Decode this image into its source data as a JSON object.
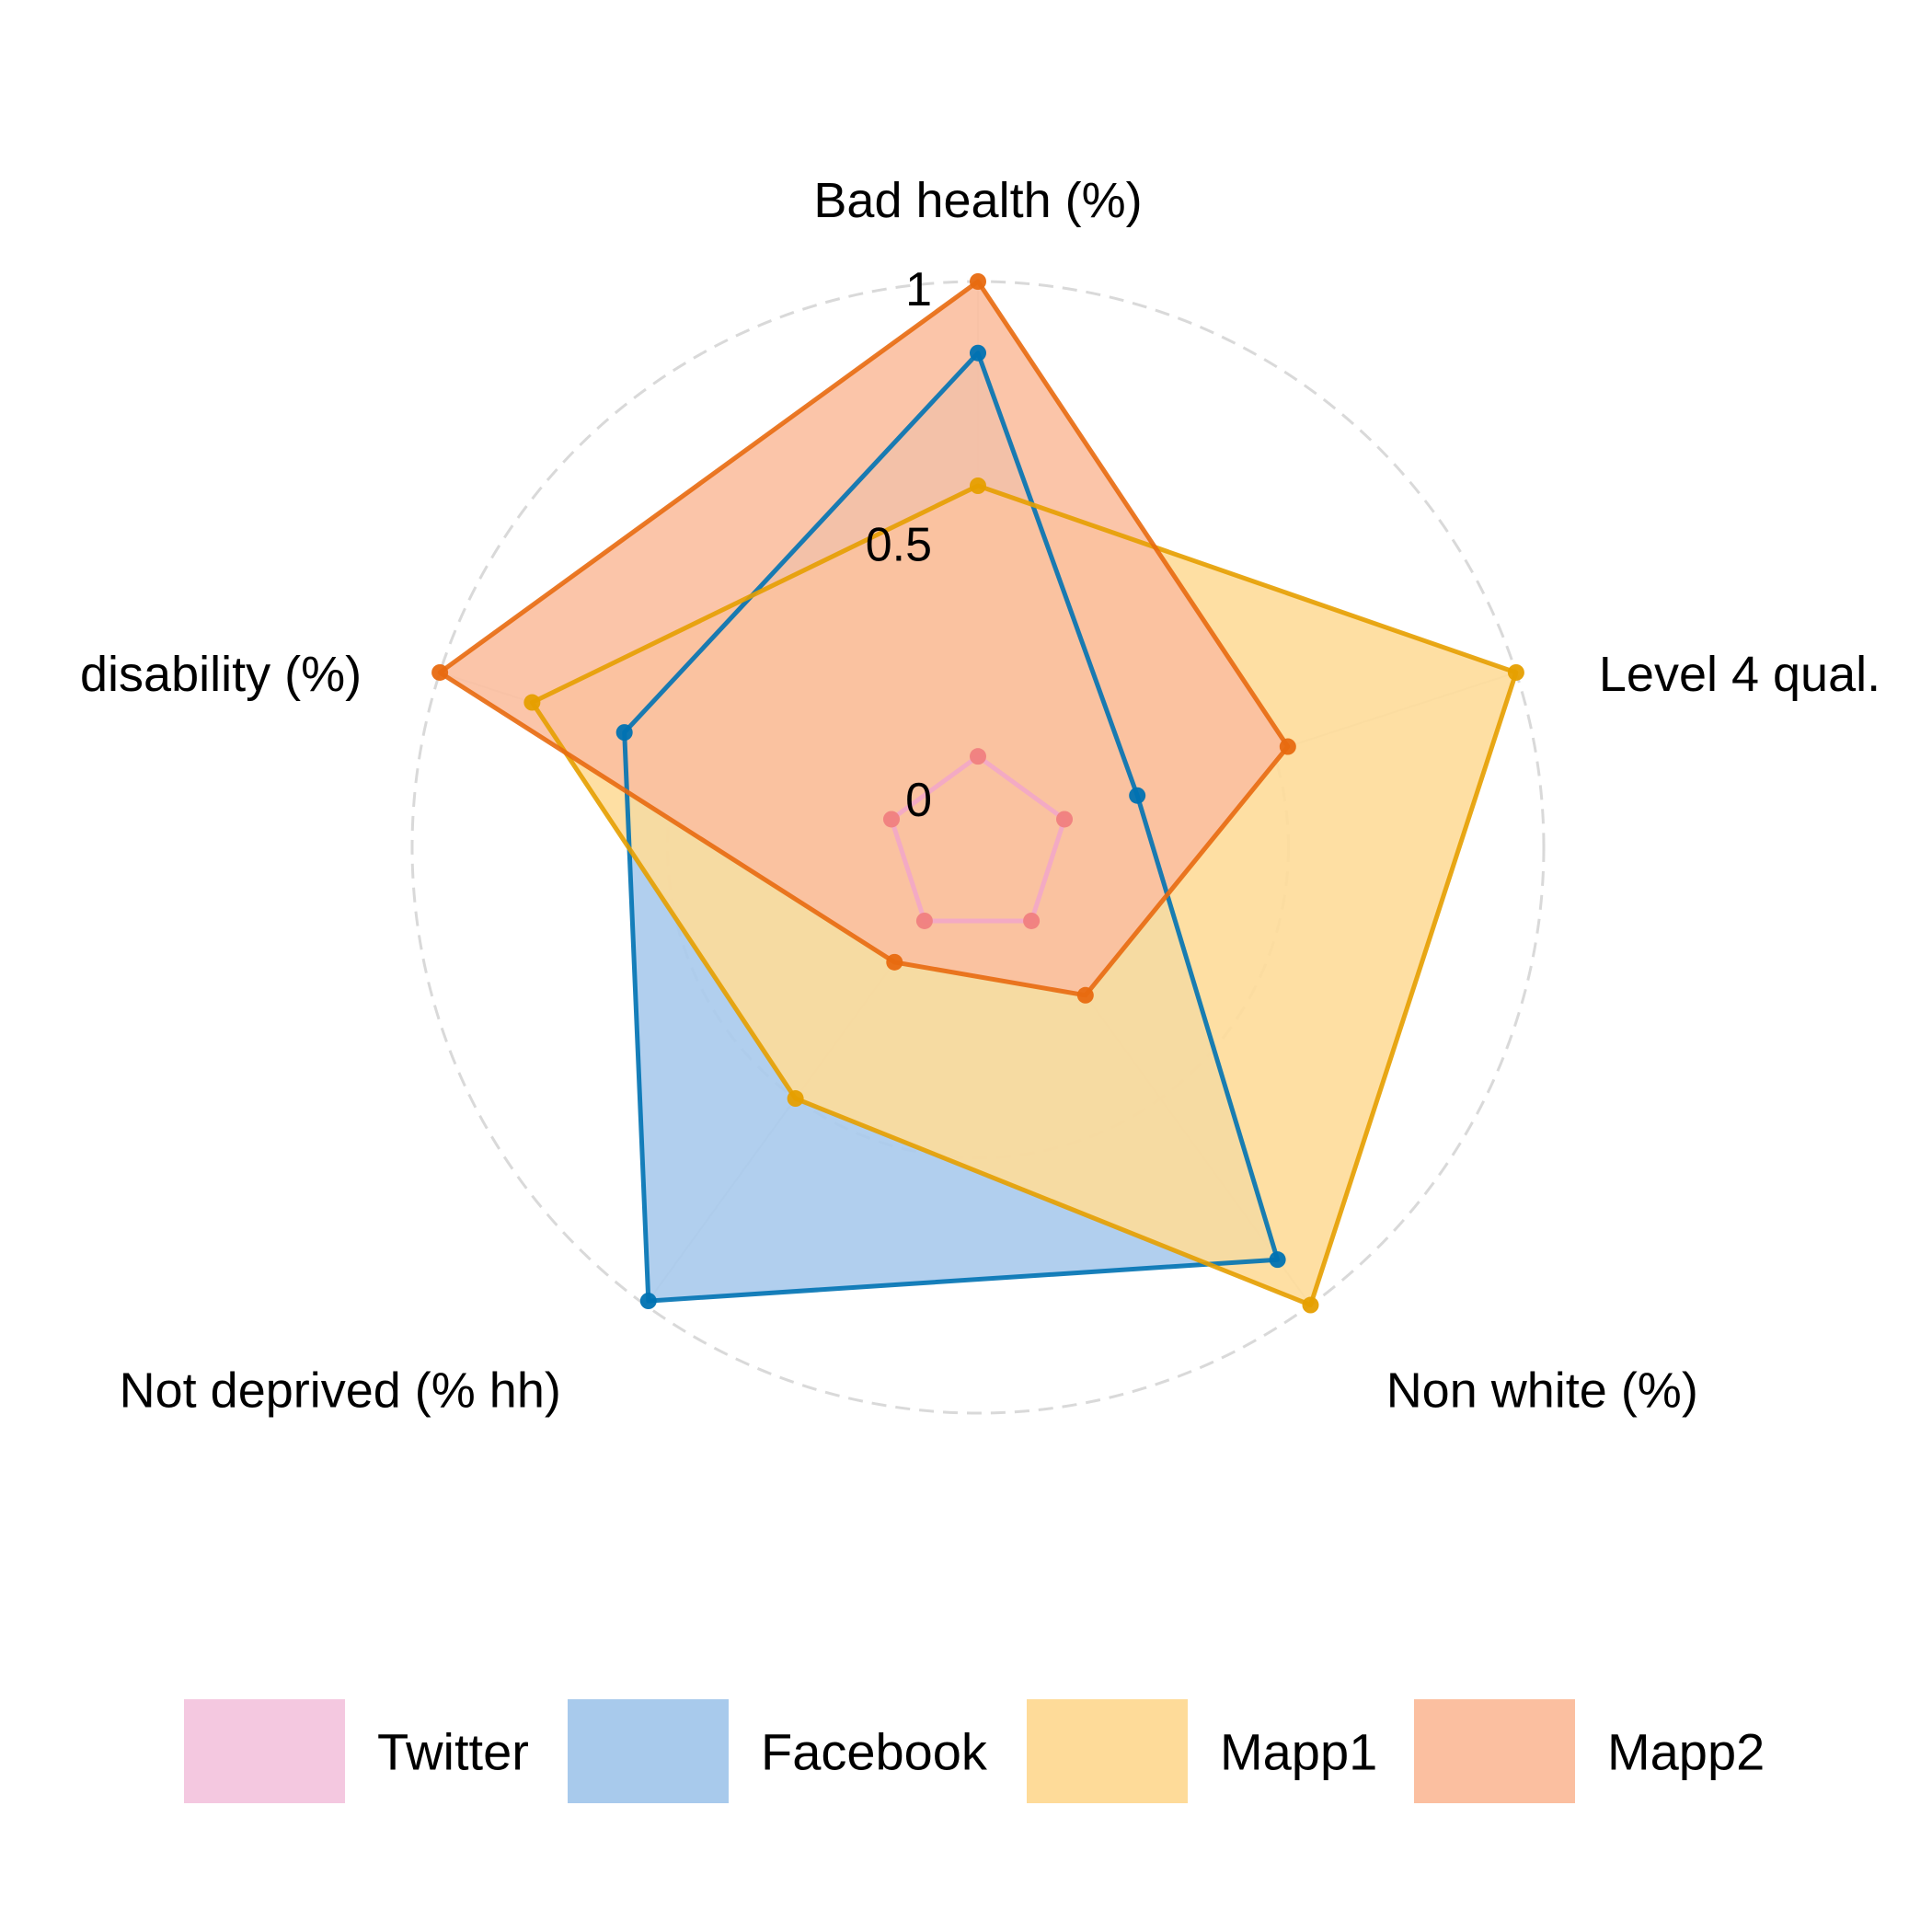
{
  "chart_data": {
    "type": "radar",
    "axes": [
      "Bad health (%)",
      "Level 4 qual.",
      "Non white (%)",
      "Not deprived (% hh)",
      "disability (%)"
    ],
    "ticks": [
      {
        "value": 0,
        "label": "0"
      },
      {
        "value": 0.5,
        "label": "0.5"
      },
      {
        "value": 1,
        "label": "1"
      }
    ],
    "range": [
      0,
      1
    ],
    "grid": true,
    "legend_position": "bottom",
    "series": [
      {
        "name": "Twitter",
        "values": [
          0.07,
          0.07,
          0.07,
          0.07,
          0.07
        ],
        "fill": "#F4C8E0",
        "line": "#F2A7C8",
        "point": "#F08080"
      },
      {
        "name": "Facebook",
        "values": [
          0.86,
          0.22,
          0.89,
          0.99,
          0.62
        ],
        "fill": "#A8CAEC",
        "line": "#0072B2",
        "point": "#0072B2"
      },
      {
        "name": "Mapp1",
        "values": [
          0.6,
          1.0,
          1.0,
          0.5,
          0.81
        ],
        "fill": "#FEDB99",
        "line": "#E69F00",
        "point": "#E69F00"
      },
      {
        "name": "Mapp2",
        "values": [
          1.0,
          0.53,
          0.25,
          0.17,
          1.0
        ],
        "fill": "#FBBFA0",
        "line": "#E86A10",
        "point": "#E86A10"
      }
    ]
  }
}
